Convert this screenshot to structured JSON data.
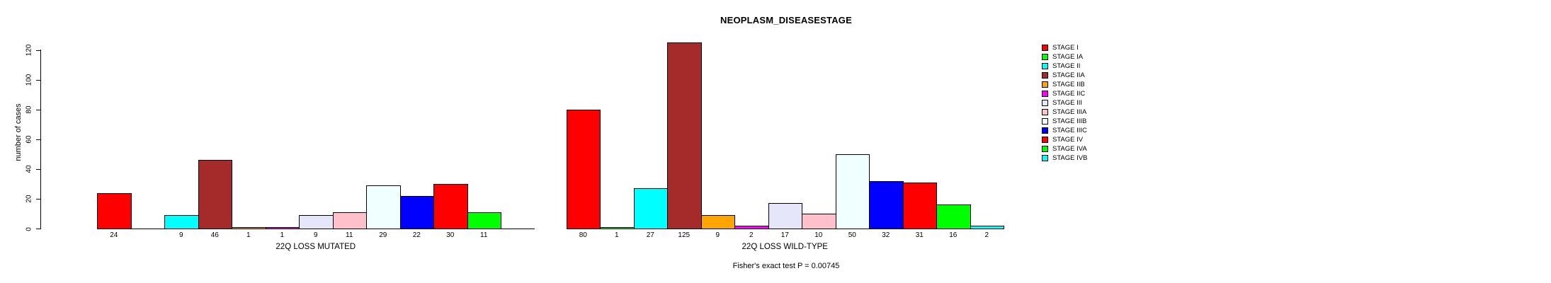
{
  "chart_data": {
    "type": "bar",
    "title": "NEOPLASM_DISEASESTAGE",
    "ylabel": "number of cases",
    "annotation": "Fisher's exact test P = 0.00745",
    "categories": [
      "STAGE I",
      "STAGE IA",
      "STAGE II",
      "STAGE IIA",
      "STAGE IIB",
      "STAGE IIC",
      "STAGE III",
      "STAGE IIIA",
      "STAGE IIIB",
      "STAGE IIIC",
      "STAGE IV",
      "STAGE IVA",
      "STAGE IVB"
    ],
    "colors": [
      "#FF0000",
      "#00FF00",
      "#00FFFF",
      "#A52A2A",
      "#FFA500",
      "#FF00FF",
      "#E6E6FA",
      "#FFC0CB",
      "#F0FFFF",
      "#0000FF",
      "#FF0000",
      "#00FF00",
      "#00FFFF"
    ],
    "series": [
      {
        "name": "22Q LOSS MUTATED",
        "values": [
          24,
          0,
          9,
          46,
          1,
          1,
          9,
          11,
          29,
          22,
          30,
          11,
          0
        ]
      },
      {
        "name": "22Q LOSS WILD-TYPE",
        "values": [
          80,
          1,
          27,
          125,
          9,
          2,
          17,
          10,
          50,
          32,
          31,
          16,
          2
        ]
      }
    ],
    "yticks": [
      0,
      20,
      40,
      60,
      80,
      100,
      120
    ],
    "ylim": [
      0,
      120
    ],
    "grid": false,
    "legend_position": "right",
    "notes": "bar value labels shown below each bar; zero-value bars and labels omitted"
  }
}
